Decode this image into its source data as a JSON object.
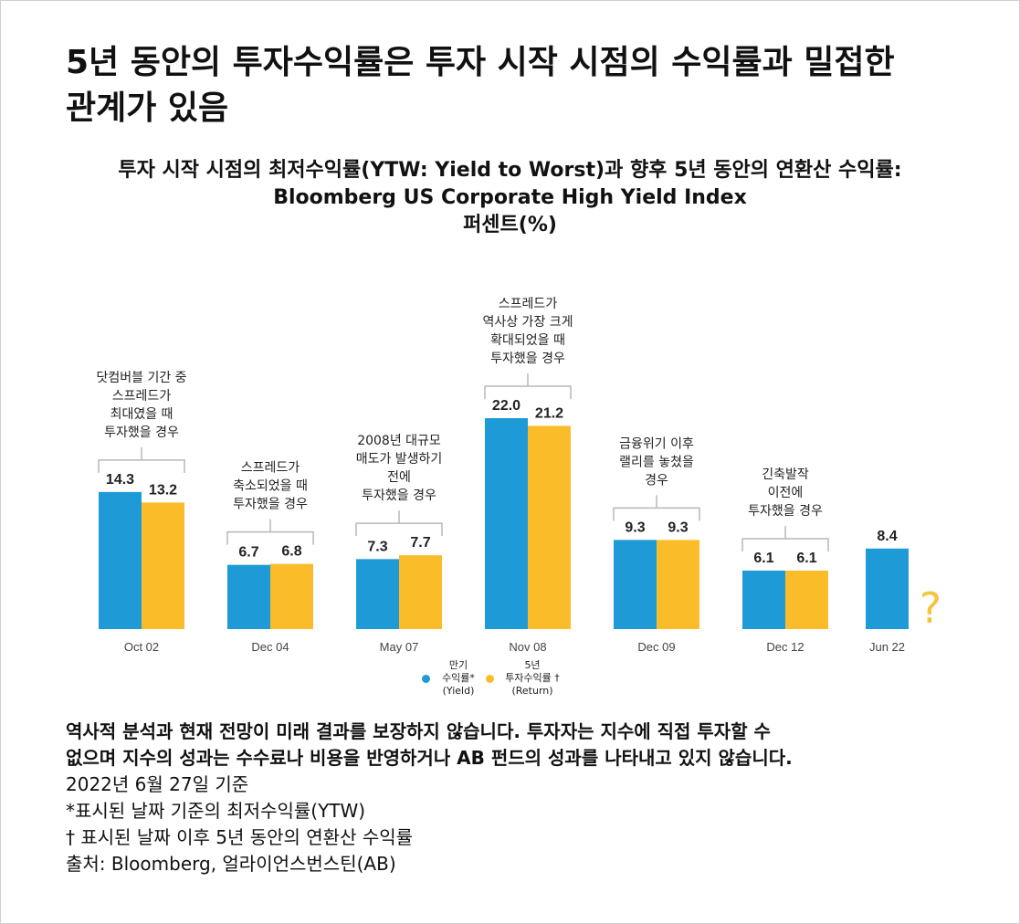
{
  "headline": [
    "5년 동안의 투자수익률은 투자 시작 시점의 수익률과 밀접한",
    "관계가 있음"
  ],
  "chart_title": [
    "투자 시작 시점의 최저수익률(YTW: Yield to Worst)과 향후 5년 동안의 연환산 수익률:",
    "Bloomberg US Corporate High Yield Index",
    "퍼센트(%)"
  ],
  "colors": {
    "yield": "#1e9ad6",
    "return": "#fbbc2a",
    "bracket": "#b8b8b8",
    "question": "#f4c542"
  },
  "chart_data": {
    "type": "bar",
    "categories": [
      "Oct 02",
      "Dec 04",
      "May 07",
      "Nov 08",
      "Dec 09",
      "Dec 12",
      "Jun 22"
    ],
    "series": [
      {
        "name": "만기 수익률* (Yield)",
        "values": [
          14.3,
          6.7,
          7.3,
          22.0,
          9.3,
          6.1,
          8.4
        ]
      },
      {
        "name": "5년 투자수익률 † (Return)",
        "values": [
          13.2,
          6.8,
          7.7,
          21.2,
          9.3,
          6.1,
          null
        ]
      }
    ],
    "value_labels": [
      [
        "14.3",
        "13.2"
      ],
      [
        "6.7",
        "6.8"
      ],
      [
        "7.3",
        "7.7"
      ],
      [
        "22.0",
        "21.2"
      ],
      [
        "9.3",
        "9.3"
      ],
      [
        "6.1",
        "6.1"
      ],
      [
        "8.4",
        ""
      ]
    ],
    "annotations": [
      [
        "닷컴버블 기간 중",
        "스프레드가",
        "최대였을 때",
        "투자했을 경우"
      ],
      [
        "스프레드가",
        "축소되었을 때",
        "투자했을 경우"
      ],
      [
        "2008년 대규모",
        "매도가 발생하기",
        "전에",
        "투자했을 경우"
      ],
      [
        "스프레드가",
        "역사상 가장 크게",
        "확대되었을 때",
        "투자했을 경우"
      ],
      [
        "금융위기 이후",
        "랠리를 놓쳤을",
        "경우"
      ],
      [
        "긴축발작",
        "이전에",
        "투자했을 경우"
      ]
    ],
    "pending_marker": "?",
    "ylim": [
      0,
      22
    ],
    "grid": false,
    "legend_position": "bottom-center"
  },
  "legend": {
    "yield_label": "만기\n수익률*\n(Yield)",
    "return_label": "5년\n투자수익률 †\n(Return)"
  },
  "notes": {
    "disclaimer": [
      "역사적 분석과 현재 전망이 미래 결과를 보장하지 않습니다. 투자자는 지수에 직접 투자할 수",
      "없으며 지수의 성과는 수수료나 비용을 반영하거나 AB 펀드의 성과를 나타내고 있지 않습니다."
    ],
    "lines": [
      "2022년 6월 27일 기준",
      "*표시된 날짜 기준의 최저수익률(YTW)",
      "† 표시된 날짜 이후 5년 동안의 연환산 수익률",
      "출처: Bloomberg, 얼라이언스번스틴(AB)"
    ]
  }
}
